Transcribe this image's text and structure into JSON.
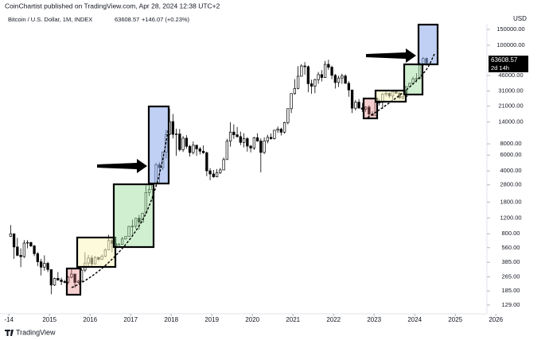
{
  "header": {
    "publisher": "CoinChartist published on TradingView.com, Apr 28, 2024 12:38 UTC+2"
  },
  "footer": {
    "brand": "TradingView"
  },
  "chart_data": {
    "type": "candlestick",
    "title": "Bitcoin / U.S. Dollar, 1M, INDEX",
    "last_price": 63608.57,
    "change": "+146.07 (+0.23%)",
    "currency": "USD",
    "countdown": "2d 14h",
    "log_scale": true,
    "up_color": "#ffffff",
    "down_color": "#000000",
    "xlim": [
      2013.78,
      2025.78
    ],
    "ylim": [
      103,
      173000
    ],
    "xticks": [
      {
        "value": 2014,
        "label": "-14"
      },
      2015,
      2016,
      2017,
      2018,
      2019,
      2020,
      2021,
      2022,
      2023,
      2024,
      2025,
      2026
    ],
    "yticks": [
      {
        "value": 129,
        "label": "129.00"
      },
      {
        "value": 185,
        "label": "185.00"
      },
      {
        "value": 265,
        "label": "265.00"
      },
      {
        "value": 385,
        "label": "385.00"
      },
      {
        "value": 560,
        "label": "560.00"
      },
      {
        "value": 800,
        "label": "800.00"
      },
      {
        "value": 1200,
        "label": "1200.00"
      },
      {
        "value": 1800,
        "label": "1800.00"
      },
      {
        "value": 2800,
        "label": "2800.00"
      },
      {
        "value": 4000,
        "label": "4000.00"
      },
      {
        "value": 6000,
        "label": "6000.00"
      },
      {
        "value": 8000,
        "label": "8000.00"
      },
      {
        "value": 14000,
        "label": "14000.00"
      },
      {
        "value": 21000,
        "label": "21000.00"
      },
      {
        "value": 31000,
        "label": "31000.00"
      },
      {
        "value": 46000,
        "label": "46000.00"
      },
      {
        "value": 100000,
        "label": "100000.00"
      },
      {
        "value": 150000,
        "label": "150000.00"
      }
    ],
    "x": [
      2014.042,
      2014.125,
      2014.208,
      2014.292,
      2014.375,
      2014.458,
      2014.542,
      2014.625,
      2014.708,
      2014.792,
      2014.875,
      2014.958,
      2015.042,
      2015.125,
      2015.208,
      2015.292,
      2015.375,
      2015.458,
      2015.542,
      2015.625,
      2015.708,
      2015.792,
      2015.875,
      2015.958,
      2016.042,
      2016.125,
      2016.208,
      2016.292,
      2016.375,
      2016.458,
      2016.542,
      2016.625,
      2016.708,
      2016.792,
      2016.875,
      2016.958,
      2017.042,
      2017.125,
      2017.208,
      2017.292,
      2017.375,
      2017.458,
      2017.542,
      2017.625,
      2017.708,
      2017.792,
      2017.875,
      2017.958,
      2018.042,
      2018.125,
      2018.208,
      2018.292,
      2018.375,
      2018.458,
      2018.542,
      2018.625,
      2018.708,
      2018.792,
      2018.875,
      2018.958,
      2019.042,
      2019.125,
      2019.208,
      2019.292,
      2019.375,
      2019.458,
      2019.542,
      2019.625,
      2019.708,
      2019.792,
      2019.875,
      2019.958,
      2020.042,
      2020.125,
      2020.208,
      2020.292,
      2020.375,
      2020.458,
      2020.542,
      2020.625,
      2020.708,
      2020.792,
      2020.875,
      2020.958,
      2021.042,
      2021.125,
      2021.208,
      2021.292,
      2021.375,
      2021.458,
      2021.542,
      2021.625,
      2021.708,
      2021.792,
      2021.875,
      2021.958,
      2022.042,
      2022.125,
      2022.208,
      2022.292,
      2022.375,
      2022.458,
      2022.542,
      2022.625,
      2022.708,
      2022.792,
      2022.875,
      2022.958,
      2023.042,
      2023.125,
      2023.208,
      2023.292,
      2023.375,
      2023.458,
      2023.542,
      2023.625,
      2023.708,
      2023.792,
      2023.875,
      2023.958,
      2024.042,
      2024.125,
      2024.208,
      2024.292
    ],
    "ohlc": [
      [
        750,
        1000,
        740,
        800
      ],
      [
        800,
        800,
        420,
        570
      ],
      [
        570,
        720,
        450,
        460
      ],
      [
        460,
        550,
        340,
        445
      ],
      [
        445,
        680,
        430,
        630
      ],
      [
        630,
        680,
        550,
        640
      ],
      [
        640,
        650,
        570,
        585
      ],
      [
        585,
        600,
        450,
        480
      ],
      [
        480,
        500,
        350,
        390
      ],
      [
        390,
        420,
        275,
        340
      ],
      [
        340,
        460,
        310,
        375
      ],
      [
        375,
        390,
        300,
        320
      ],
      [
        320,
        320,
        170,
        215
      ],
      [
        215,
        260,
        210,
        255
      ],
      [
        255,
        300,
        240,
        245
      ],
      [
        245,
        260,
        215,
        235
      ],
      [
        235,
        245,
        225,
        230
      ],
      [
        230,
        270,
        220,
        263
      ],
      [
        263,
        320,
        255,
        285
      ],
      [
        285,
        285,
        200,
        230
      ],
      [
        230,
        245,
        225,
        237
      ],
      [
        237,
        330,
        235,
        315
      ],
      [
        315,
        500,
        300,
        378
      ],
      [
        378,
        465,
        350,
        430
      ],
      [
        430,
        460,
        350,
        370
      ],
      [
        370,
        450,
        365,
        437
      ],
      [
        437,
        440,
        400,
        416
      ],
      [
        416,
        470,
        410,
        448
      ],
      [
        448,
        550,
        440,
        531
      ],
      [
        531,
        780,
        525,
        673
      ],
      [
        673,
        700,
        500,
        624
      ],
      [
        624,
        630,
        520,
        575
      ],
      [
        575,
        630,
        570,
        610
      ],
      [
        610,
        740,
        605,
        700
      ],
      [
        700,
        750,
        690,
        745
      ],
      [
        745,
        980,
        740,
        965
      ],
      [
        965,
        1150,
        750,
        970
      ],
      [
        970,
        1200,
        920,
        1190
      ],
      [
        1190,
        1300,
        890,
        1080
      ],
      [
        1080,
        1370,
        1060,
        1350
      ],
      [
        1350,
        2760,
        1340,
        2300
      ],
      [
        2300,
        3000,
        2100,
        2480
      ],
      [
        2480,
        2950,
        1830,
        2875
      ],
      [
        2875,
        4900,
        2670,
        4700
      ],
      [
        4700,
        5000,
        2950,
        4340
      ],
      [
        4340,
        6470,
        4100,
        6470
      ],
      [
        6470,
        11500,
        5500,
        10200
      ],
      [
        10200,
        19800,
        10000,
        14150
      ],
      [
        14150,
        17200,
        9200,
        10200
      ],
      [
        10200,
        11800,
        5900,
        10300
      ],
      [
        10300,
        11700,
        6600,
        6900
      ],
      [
        6900,
        9800,
        6500,
        9240
      ],
      [
        9240,
        10000,
        7050,
        7500
      ],
      [
        7500,
        7800,
        5750,
        6400
      ],
      [
        6400,
        8500,
        6100,
        7730
      ],
      [
        7730,
        7760,
        5880,
        7040
      ],
      [
        7040,
        7400,
        6100,
        6630
      ],
      [
        6630,
        7700,
        6200,
        6370
      ],
      [
        6370,
        6550,
        3500,
        4010
      ],
      [
        4010,
        4300,
        3150,
        3700
      ],
      [
        3700,
        4100,
        3350,
        3440
      ],
      [
        3440,
        4200,
        3400,
        3830
      ],
      [
        3830,
        4300,
        3690,
        4100
      ],
      [
        4100,
        5650,
        4080,
        5350
      ],
      [
        5350,
        9100,
        5330,
        8570
      ],
      [
        8570,
        13900,
        7450,
        10820
      ],
      [
        10820,
        13200,
        9100,
        10090
      ],
      [
        10090,
        12300,
        9400,
        9630
      ],
      [
        9630,
        10950,
        7750,
        8300
      ],
      [
        8300,
        10500,
        7300,
        9150
      ],
      [
        9150,
        9500,
        6550,
        7550
      ],
      [
        7550,
        7750,
        6430,
        7190
      ],
      [
        7190,
        9550,
        6850,
        9350
      ],
      [
        9350,
        10500,
        8450,
        8600
      ],
      [
        8600,
        9200,
        3850,
        6420
      ],
      [
        6420,
        9450,
        6150,
        8620
      ],
      [
        8620,
        10100,
        8100,
        9450
      ],
      [
        9450,
        10400,
        8900,
        9140
      ],
      [
        9140,
        11450,
        8950,
        11350
      ],
      [
        11350,
        12470,
        10550,
        11660
      ],
      [
        11660,
        12100,
        9900,
        10780
      ],
      [
        10780,
        14100,
        10400,
        13800
      ],
      [
        13800,
        19800,
        13200,
        19700
      ],
      [
        19700,
        29300,
        17600,
        28990
      ],
      [
        28990,
        41950,
        28150,
        33100
      ],
      [
        33100,
        58350,
        32300,
        45200
      ],
      [
        45200,
        61800,
        44950,
        58800
      ],
      [
        58800,
        64900,
        47000,
        57700
      ],
      [
        57700,
        59500,
        30000,
        37300
      ],
      [
        37300,
        41300,
        28800,
        35040
      ],
      [
        35040,
        42400,
        29300,
        41460
      ],
      [
        41460,
        50500,
        37300,
        47150
      ],
      [
        47150,
        52900,
        39600,
        43800
      ],
      [
        43800,
        67000,
        43300,
        61300
      ],
      [
        61300,
        69000,
        53250,
        57000
      ],
      [
        57000,
        59100,
        42000,
        46300
      ],
      [
        46300,
        47900,
        32950,
        38480
      ],
      [
        38480,
        45800,
        34300,
        43190
      ],
      [
        43190,
        48200,
        37200,
        45540
      ],
      [
        45540,
        47450,
        37700,
        37650
      ],
      [
        37650,
        39800,
        26700,
        31800
      ],
      [
        31800,
        31900,
        17600,
        19940
      ],
      [
        19940,
        24650,
        18800,
        23300
      ],
      [
        23300,
        25200,
        19600,
        20050
      ],
      [
        20050,
        22800,
        18150,
        19430
      ],
      [
        19430,
        21000,
        18200,
        20500
      ],
      [
        20500,
        21450,
        15500,
        17170
      ],
      [
        17170,
        18400,
        16300,
        16540
      ],
      [
        16540,
        23900,
        16500,
        23140
      ],
      [
        23140,
        25250,
        21400,
        23150
      ],
      [
        23150,
        29200,
        19550,
        28480
      ],
      [
        28480,
        31000,
        26950,
        29250
      ],
      [
        29250,
        29800,
        25800,
        27220
      ],
      [
        27220,
        31400,
        24800,
        30480
      ],
      [
        30480,
        31800,
        28850,
        29230
      ],
      [
        29230,
        30200,
        25300,
        25940
      ],
      [
        25940,
        27500,
        24900,
        26960
      ],
      [
        26960,
        35200,
        26550,
        34650
      ],
      [
        34650,
        38450,
        34100,
        37720
      ],
      [
        37720,
        44700,
        37600,
        42280
      ],
      [
        42280,
        48970,
        38500,
        42580
      ],
      [
        42580,
        63900,
        41880,
        61130
      ],
      [
        61130,
        73800,
        59000,
        71280
      ],
      [
        71280,
        72800,
        59100,
        63608.57
      ]
    ]
  }
}
